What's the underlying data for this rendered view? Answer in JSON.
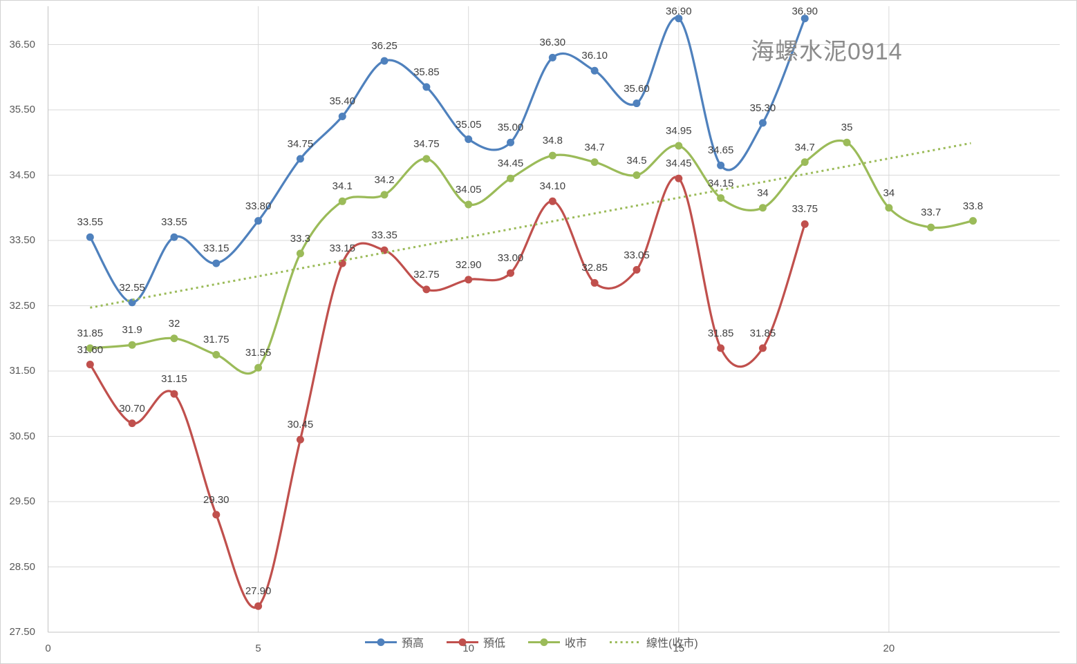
{
  "title": "海螺水泥0914",
  "axes": {
    "y_ticks": [
      {
        "label": "36.50",
        "value": 36.5
      },
      {
        "label": "35.50",
        "value": 35.5
      },
      {
        "label": "34.50",
        "value": 34.5
      },
      {
        "label": "33.50",
        "value": 33.5
      },
      {
        "label": "32.50",
        "value": 32.5
      },
      {
        "label": "31.50",
        "value": 31.5
      },
      {
        "label": "30.50",
        "value": 30.5
      },
      {
        "label": "29.50",
        "value": 29.5
      },
      {
        "label": "28.50",
        "value": 28.5
      },
      {
        "label": "27.50",
        "value": 27.5
      }
    ],
    "x_ticks": [
      {
        "label": "0",
        "value": 0
      },
      {
        "label": "5",
        "value": 5
      },
      {
        "label": "10",
        "value": 10
      },
      {
        "label": "15",
        "value": 15
      },
      {
        "label": "20",
        "value": 20
      }
    ]
  },
  "colors": {
    "blue": "#4F81BD",
    "red": "#C0504D",
    "green": "#9BBB59",
    "gridline": "#d9d9d9",
    "axis_line": "#c3c3c3",
    "tick_text": "#595959",
    "label_text": "#404040",
    "title_text": "#8b8b8b"
  },
  "chart_data": {
    "type": "line",
    "title": "海螺水泥0914",
    "xlim": [
      0,
      24.07
    ],
    "ylim": [
      27.5,
      37.07
    ],
    "grid": true,
    "legend_position": "bottom",
    "series": [
      {
        "name": "預高",
        "color": "#4F81BD",
        "style": "smooth-line-marker",
        "x": [
          1,
          2,
          3,
          4,
          5,
          6,
          7,
          8,
          9,
          10,
          11,
          12,
          13,
          14,
          15,
          16,
          17,
          18
        ],
        "values": [
          33.55,
          32.55,
          33.55,
          33.15,
          33.8,
          34.75,
          35.4,
          36.25,
          35.85,
          35.05,
          35.0,
          36.3,
          36.1,
          35.6,
          36.9,
          34.65,
          35.3,
          36.9
        ],
        "labels": [
          "33.55",
          "32.55",
          "33.55",
          "33.15",
          "33.80",
          "34.75",
          "35.40",
          "36.25",
          "35.85",
          "35.05",
          "35.00",
          "36.30",
          "36.10",
          "35.60",
          "36.90",
          "34.65",
          "35.30",
          "36.90"
        ]
      },
      {
        "name": "預低",
        "color": "#C0504D",
        "style": "smooth-line-marker",
        "x": [
          1,
          2,
          3,
          4,
          5,
          6,
          7,
          8,
          9,
          10,
          11,
          12,
          13,
          14,
          15,
          16,
          17,
          18
        ],
        "values": [
          31.6,
          30.7,
          31.15,
          29.3,
          27.9,
          30.45,
          33.15,
          33.35,
          32.75,
          32.9,
          33.0,
          34.1,
          32.85,
          33.05,
          34.45,
          31.85,
          31.85,
          33.75
        ],
        "labels": [
          "31.60",
          "30.70",
          "31.15",
          "29.30",
          "27.90",
          "30.45",
          "33.15",
          "33.35",
          "32.75",
          "32.90",
          "33.00",
          "34.10",
          "32.85",
          "33.05",
          "34.45",
          "31.85",
          "31.85",
          "33.75"
        ]
      },
      {
        "name": "收市",
        "color": "#9BBB59",
        "style": "smooth-line-marker",
        "x": [
          1,
          2,
          3,
          4,
          5,
          6,
          7,
          8,
          9,
          10,
          11,
          12,
          13,
          14,
          15,
          16,
          17,
          18,
          19,
          20,
          21,
          22
        ],
        "values": [
          31.85,
          31.9,
          32,
          31.75,
          31.55,
          33.3,
          34.1,
          34.2,
          34.75,
          34.05,
          34.45,
          34.8,
          34.7,
          34.5,
          34.95,
          34.15,
          34,
          34.7,
          35,
          34,
          33.7,
          33.8
        ],
        "labels": [
          "31.85",
          "31.9",
          "32",
          "31.75",
          "31.55",
          "33.3",
          "34.1",
          "34.2",
          "34.75",
          "34.05",
          "34.45",
          "34.8",
          "34.7",
          "34.5",
          "34.95",
          "34.15",
          "34",
          "34.7",
          "35",
          "34",
          "33.7",
          "33.8"
        ]
      },
      {
        "name": "線性(收市)",
        "color": "#9BBB59",
        "style": "dotted-trendline",
        "trend": {
          "x1": 1,
          "y1": 32.47,
          "x2": 21.95,
          "y2": 34.99
        }
      }
    ]
  },
  "legend": {
    "items": [
      {
        "label": "預高"
      },
      {
        "label": "預低"
      },
      {
        "label": "收市"
      },
      {
        "label": "線性(收市)"
      }
    ]
  }
}
